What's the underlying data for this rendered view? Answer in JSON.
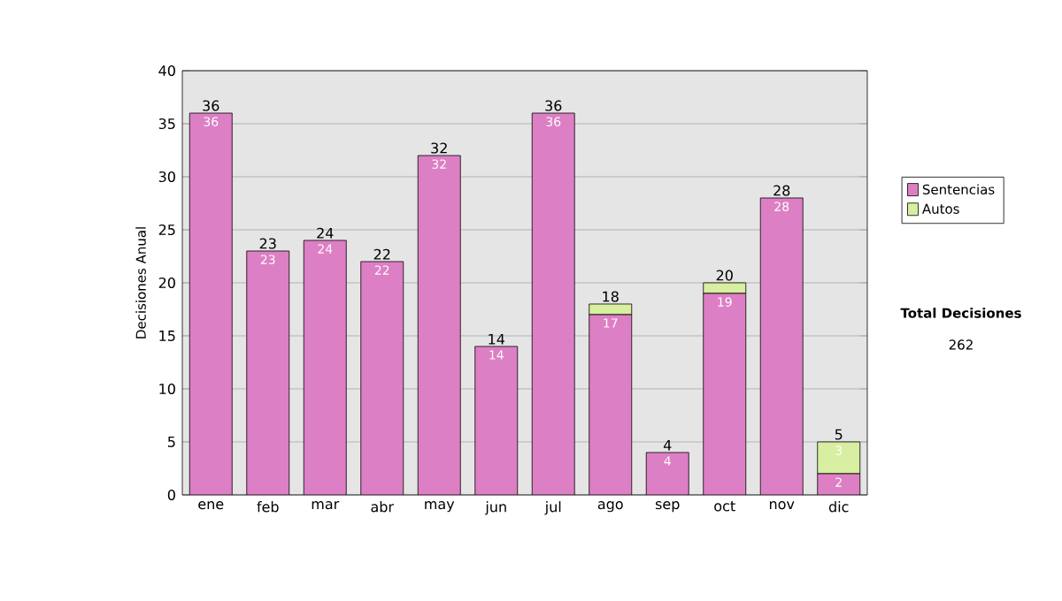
{
  "chart_data": {
    "type": "bar",
    "stacked": true,
    "ylabel": "Decisiones Anual",
    "categories": [
      "ene",
      "feb",
      "mar",
      "abr",
      "may",
      "jun",
      "jul",
      "ago",
      "sep",
      "oct",
      "nov",
      "dic"
    ],
    "series": [
      {
        "name": "Sentencias",
        "color": "#dd7fc4",
        "values": [
          36,
          23,
          24,
          22,
          32,
          14,
          36,
          17,
          4,
          19,
          28,
          2
        ],
        "value_labels": [
          "36",
          "23",
          "24",
          "22",
          "32",
          "14",
          "36",
          "17",
          "4",
          "19",
          "28",
          "2"
        ]
      },
      {
        "name": "Autos",
        "color": "#d8eea0",
        "values": [
          0,
          0,
          0,
          0,
          0,
          0,
          0,
          1,
          0,
          1,
          0,
          3
        ],
        "value_labels": [
          null,
          null,
          null,
          null,
          null,
          null,
          null,
          null,
          null,
          null,
          null,
          "3"
        ]
      }
    ],
    "totals": [
      "36",
      "23",
      "24",
      "22",
      "32",
      "14",
      "36",
      "18",
      "4",
      "20",
      "28",
      "5"
    ],
    "ylim": [
      0,
      40
    ],
    "yticks": [
      0,
      5,
      10,
      15,
      20,
      25,
      30,
      35,
      40
    ],
    "grid": "y",
    "legend": "right",
    "annotations": [
      "Total Decisiones",
      "262"
    ]
  }
}
